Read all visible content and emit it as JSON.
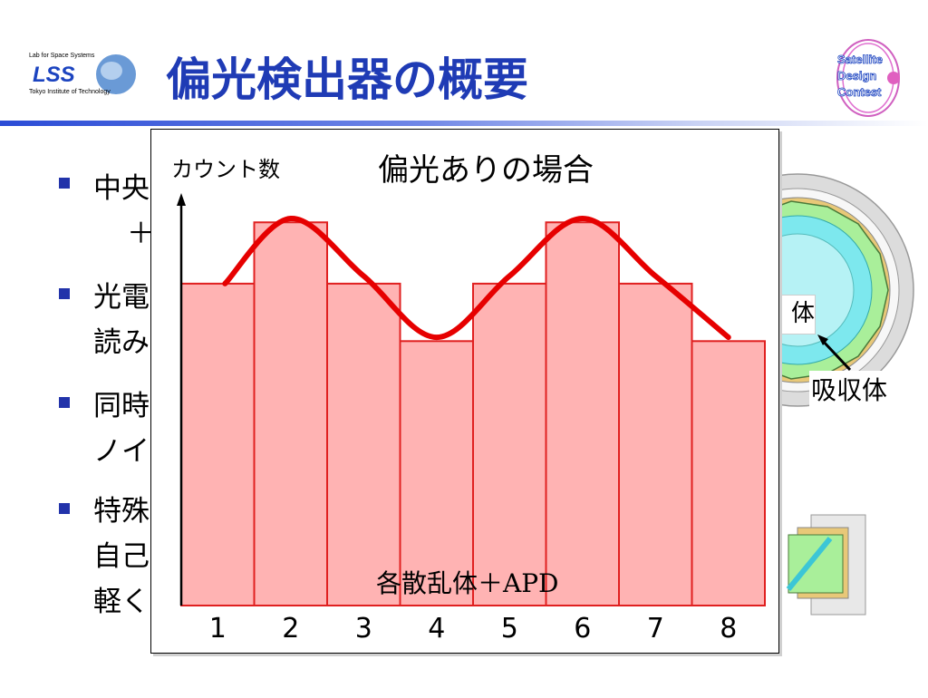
{
  "slide": {
    "title": "偏光検出器の概要",
    "bullets": [
      {
        "lines": [
          "中央",
          "＋"
        ]
      },
      {
        "lines": [
          "光電",
          "読み"
        ]
      },
      {
        "lines": [
          "同時",
          "ノイ"
        ]
      },
      {
        "lines": [
          "特殊",
          "自己",
          "軽く"
        ]
      }
    ],
    "logo_left": {
      "top_text": "Lab for Space Systems",
      "brand": "LSS",
      "bottom_text": "Tokyo Institute of Technology"
    },
    "logo_right": {
      "lines": [
        "Satellite",
        "Design",
        "Contest"
      ]
    }
  },
  "background_diagram": {
    "absorber_label": "吸収体",
    "partial_label": "体"
  },
  "colors": {
    "title": "#1f3bb5",
    "bar_fill": "#ffb3b3",
    "bar_stroke": "#e02020",
    "curve": "#e60000",
    "bullet": "#2233aa"
  },
  "chart_data": {
    "type": "bar",
    "title": "偏光ありの場合",
    "ylabel": "カウント数",
    "xlabel": "各散乱体＋APD",
    "categories": [
      "1",
      "2",
      "3",
      "4",
      "5",
      "6",
      "7",
      "8"
    ],
    "values": [
      0.84,
      1.0,
      0.84,
      0.69,
      0.84,
      1.0,
      0.84,
      0.69
    ],
    "ylim": [
      0,
      1.1
    ],
    "overlay_curve": "cos(2φ) modulation",
    "curve_points": [
      {
        "x": 0.6,
        "y": 0.84
      },
      {
        "x": 1.5,
        "y": 1.01
      },
      {
        "x": 2.5,
        "y": 0.86
      },
      {
        "x": 3.5,
        "y": 0.7
      },
      {
        "x": 4.5,
        "y": 0.86
      },
      {
        "x": 5.5,
        "y": 1.01
      },
      {
        "x": 6.5,
        "y": 0.86
      },
      {
        "x": 7.5,
        "y": 0.7
      }
    ],
    "grid": false,
    "legend": "none"
  }
}
